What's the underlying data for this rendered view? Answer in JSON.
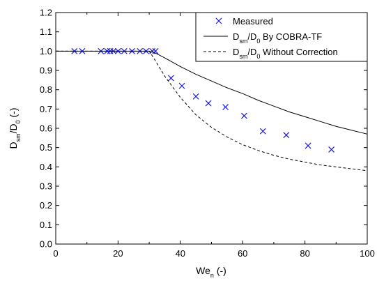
{
  "chart_data": {
    "type": "line",
    "title": "",
    "xlabel": {
      "base": "We",
      "sub": "n",
      "suffix": " (-)"
    },
    "ylabel": {
      "parts": [
        {
          "t": "D",
          "sub": false
        },
        {
          "t": "sm",
          "sub": true
        },
        {
          "t": "/D",
          "sub": false
        },
        {
          "t": "0",
          "sub": true
        },
        {
          "t": " (-)",
          "sub": false
        }
      ]
    },
    "xlim": [
      0,
      100
    ],
    "ylim": [
      0.0,
      1.2
    ],
    "xticks": [
      0,
      20,
      40,
      60,
      80,
      100
    ],
    "xtick_labels": [
      "0",
      "20",
      "40",
      "60",
      "80",
      "100"
    ],
    "yticks": [
      0.0,
      0.1,
      0.2,
      0.3,
      0.4,
      0.5,
      0.6,
      0.7,
      0.8,
      0.9,
      1.0,
      1.1,
      1.2
    ],
    "ytick_labels": [
      "0.0",
      "0.1",
      "0.2",
      "0.3",
      "0.4",
      "0.5",
      "0.6",
      "0.7",
      "0.8",
      "0.9",
      "1.0",
      "1.1",
      "1.2"
    ],
    "grid": false,
    "legend_position": "top-right",
    "series": [
      {
        "name": "Measured",
        "style": "marker-x",
        "color": "#1a1adb",
        "x": [
          6,
          8.5,
          14.5,
          16.5,
          17.5,
          18.5,
          20,
          22,
          24.5,
          27,
          29,
          31,
          32,
          37,
          40.5,
          45,
          49,
          54.5,
          60.5,
          66.5,
          74,
          81,
          88.5
        ],
        "y": [
          1.0,
          1.0,
          1.0,
          1.0,
          1.0,
          1.0,
          1.0,
          1.0,
          1.0,
          1.0,
          1.0,
          1.0,
          1.0,
          0.86,
          0.82,
          0.765,
          0.73,
          0.71,
          0.665,
          0.585,
          0.565,
          0.51,
          0.49
        ]
      },
      {
        "name": "D_sm/D_0 By COBRA-TF",
        "legend_parts": [
          {
            "t": "D",
            "sub": false
          },
          {
            "t": "sm",
            "sub": true
          },
          {
            "t": "/D",
            "sub": false
          },
          {
            "t": "0",
            "sub": true
          },
          {
            "t": " By COBRA-TF",
            "sub": false
          }
        ],
        "style": "solid",
        "color": "#000000",
        "x": [
          0,
          30,
          32,
          35,
          40,
          45,
          50,
          55,
          60,
          65,
          70,
          75,
          80,
          85,
          90,
          95,
          100
        ],
        "y": [
          1.0,
          1.0,
          0.99,
          0.965,
          0.92,
          0.88,
          0.845,
          0.81,
          0.78,
          0.745,
          0.715,
          0.685,
          0.66,
          0.635,
          0.61,
          0.59,
          0.57
        ]
      },
      {
        "name": "D_sm/D_0 Without Correction",
        "legend_parts": [
          {
            "t": "D",
            "sub": false
          },
          {
            "t": "sm",
            "sub": true
          },
          {
            "t": "/D",
            "sub": false
          },
          {
            "t": "0",
            "sub": true
          },
          {
            "t": " Without Correction",
            "sub": false
          }
        ],
        "style": "dashed",
        "color": "#000000",
        "x": [
          0,
          30,
          32,
          35,
          40,
          45,
          50,
          55,
          60,
          65,
          70,
          75,
          80,
          85,
          90,
          95,
          100
        ],
        "y": [
          1.0,
          1.0,
          0.95,
          0.87,
          0.76,
          0.67,
          0.605,
          0.555,
          0.515,
          0.485,
          0.46,
          0.44,
          0.425,
          0.41,
          0.4,
          0.39,
          0.38
        ]
      }
    ]
  }
}
